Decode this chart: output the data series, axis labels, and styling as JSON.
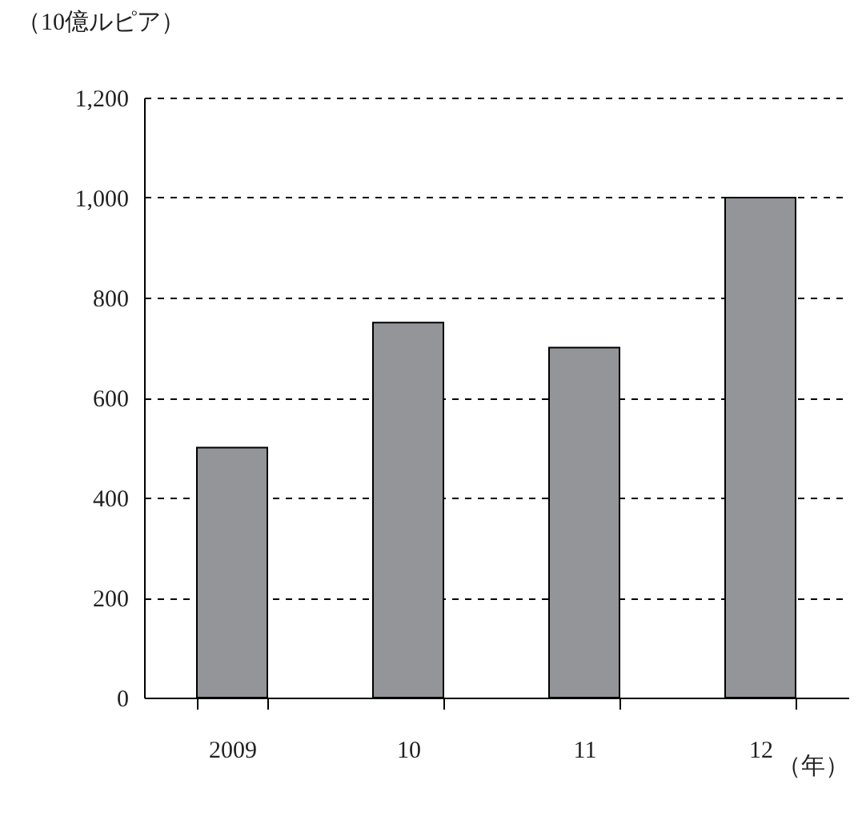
{
  "chart_data": {
    "type": "bar",
    "ylabel": "（10億ルピア）",
    "xlabel": "（年）",
    "categories": [
      "2009",
      "10",
      "11",
      "12"
    ],
    "values": [
      500,
      750,
      700,
      1000
    ],
    "color": "#939598",
    "ylim": [
      0,
      1200
    ],
    "yticks": [
      0,
      200,
      400,
      600,
      800,
      {
        "value": 1000,
        "label": "1,000"
      },
      {
        "value": 1200,
        "label": "1,200"
      }
    ],
    "grid": "y"
  }
}
